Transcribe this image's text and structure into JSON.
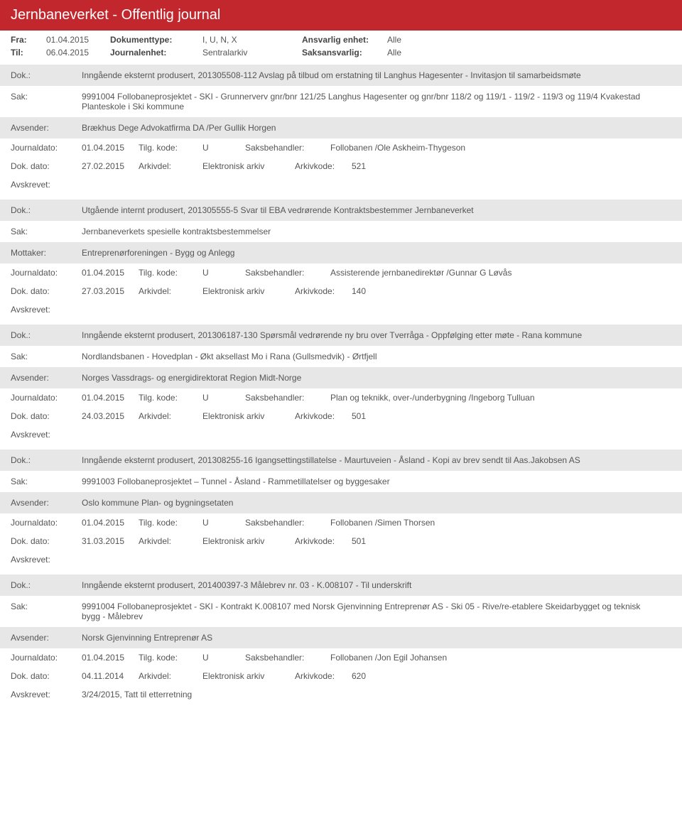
{
  "header": {
    "title": "Jernbaneverket - Offentlig journal"
  },
  "meta": {
    "fra_label": "Fra:",
    "fra": "01.04.2015",
    "til_label": "Til:",
    "til": "06.04.2015",
    "doktype_label": "Dokumenttype:",
    "doktype": "I, U, N, X",
    "journalenhet_label": "Journalenhet:",
    "journalenhet": "Sentralarkiv",
    "ansvarlig_label": "Ansvarlig enhet:",
    "ansvarlig": "Alle",
    "saksansvarlig_label": "Saksansvarlig:",
    "saksansvarlig": "Alle"
  },
  "labels": {
    "dok": "Dok.:",
    "sak": "Sak:",
    "avsender": "Avsender:",
    "mottaker": "Mottaker:",
    "journaldato": "Journaldato:",
    "tilgkode": "Tilg. kode:",
    "saksbehandler": "Saksbehandler:",
    "dokdato": "Dok. dato:",
    "arkivdel": "Arkivdel:",
    "arkivkode": "Arkivkode:",
    "avskrevet": "Avskrevet:"
  },
  "entries": [
    {
      "dok": "Inngående eksternt produsert, 201305508-112 Avslag på tilbud om erstatning til Langhus Hagesenter - Invitasjon til samarbeidsmøte",
      "sak": "9991004 Follobaneprosjektet - SKI - Grunnerverv gnr/bnr 121/25 Langhus Hagesenter og gnr/bnr 118/2 og 119/1 - 119/2 - 119/3 og 119/4 Kvakestad Planteskole i Ski kommune",
      "party_label": "Avsender:",
      "party": "Brækhus Dege Advokatfirma DA /Per Gullik Horgen",
      "journaldato": "01.04.2015",
      "tilgkode": "U",
      "saksbehandler": "Follobanen /Ole Askheim-Thygeson",
      "dokdato": "27.02.2015",
      "arkivdel": "Elektronisk arkiv",
      "arkivkode": "521",
      "avskrevet": ""
    },
    {
      "dok": "Utgående internt produsert, 201305555-5 Svar til EBA vedrørende Kontraktsbestemmer Jernbaneverket",
      "sak": "Jernbaneverkets spesielle kontraktsbestemmelser",
      "party_label": "Mottaker:",
      "party": "Entreprenørforeningen - Bygg og Anlegg",
      "journaldato": "01.04.2015",
      "tilgkode": "U",
      "saksbehandler": "Assisterende jernbanedirektør /Gunnar G Løvås",
      "dokdato": "27.03.2015",
      "arkivdel": "Elektronisk arkiv",
      "arkivkode": "140",
      "avskrevet": ""
    },
    {
      "dok": "Inngående eksternt produsert, 201306187-130 Spørsmål vedrørende ny bru over Tverråga - Oppfølging etter møte - Rana kommune",
      "sak": "Nordlandsbanen - Hovedplan - Økt aksellast Mo i Rana (Gullsmedvik) - Ørtfjell",
      "party_label": "Avsender:",
      "party": "Norges Vassdrags- og energidirektorat Region Midt-Norge",
      "journaldato": "01.04.2015",
      "tilgkode": "U",
      "saksbehandler": "Plan og teknikk, over-/underbygning /Ingeborg Tulluan",
      "dokdato": "24.03.2015",
      "arkivdel": "Elektronisk arkiv",
      "arkivkode": "501",
      "avskrevet": ""
    },
    {
      "dok": "Inngående eksternt produsert, 201308255-16 Igangsettingstillatelse - Maurtuveien - Åsland - Kopi av brev sendt til Aas.Jakobsen AS",
      "sak": "9991003 Follobaneprosjektet – Tunnel - Åsland - Rammetillatelser og byggesaker",
      "party_label": "Avsender:",
      "party": "Oslo kommune Plan- og bygningsetaten",
      "journaldato": "01.04.2015",
      "tilgkode": "U",
      "saksbehandler": "Follobanen /Simen Thorsen",
      "dokdato": "31.03.2015",
      "arkivdel": "Elektronisk arkiv",
      "arkivkode": "501",
      "avskrevet": ""
    },
    {
      "dok": "Inngående eksternt produsert, 201400397-3 Målebrev nr. 03 - K.008107 - Til underskrift",
      "sak": "9991004 Follobaneprosjektet - SKI - Kontrakt K.008107 med Norsk Gjenvinning Entreprenør AS - Ski 05 - Rive/re-etablere Skeidarbygget og teknisk bygg - Målebrev",
      "party_label": "Avsender:",
      "party": "Norsk Gjenvinning Entreprenør AS",
      "journaldato": "01.04.2015",
      "tilgkode": "U",
      "saksbehandler": "Follobanen /Jon Egil Johansen",
      "dokdato": "04.11.2014",
      "arkivdel": "Elektronisk arkiv",
      "arkivkode": "620",
      "avskrevet": "3/24/2015, Tatt til etterretning"
    }
  ]
}
